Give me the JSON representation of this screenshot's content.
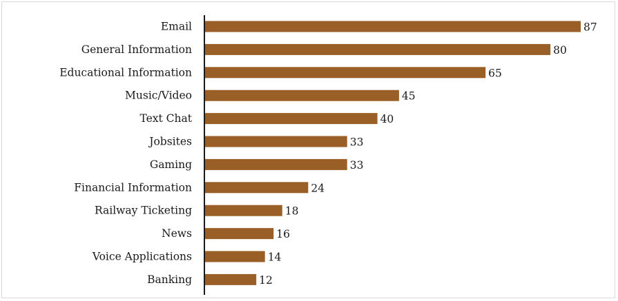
{
  "chart_data": {
    "type": "bar",
    "orientation": "horizontal",
    "categories": [
      "Email",
      "General Information",
      "Educational Information",
      "Music/Video",
      "Text Chat",
      "Jobsites",
      "Gaming",
      "Financial Information",
      "Railway Ticketing",
      "News",
      "Voice Applications",
      "Banking"
    ],
    "values": [
      87,
      80,
      65,
      45,
      40,
      33,
      33,
      24,
      18,
      16,
      14,
      12
    ],
    "xlim": [
      0,
      87
    ],
    "grid": false,
    "legend": "none",
    "colors": {
      "bar": "#9a5f26",
      "axis": "#1a1a1a",
      "text": "#1a1a1a",
      "frame": "#d9d9d9"
    }
  }
}
